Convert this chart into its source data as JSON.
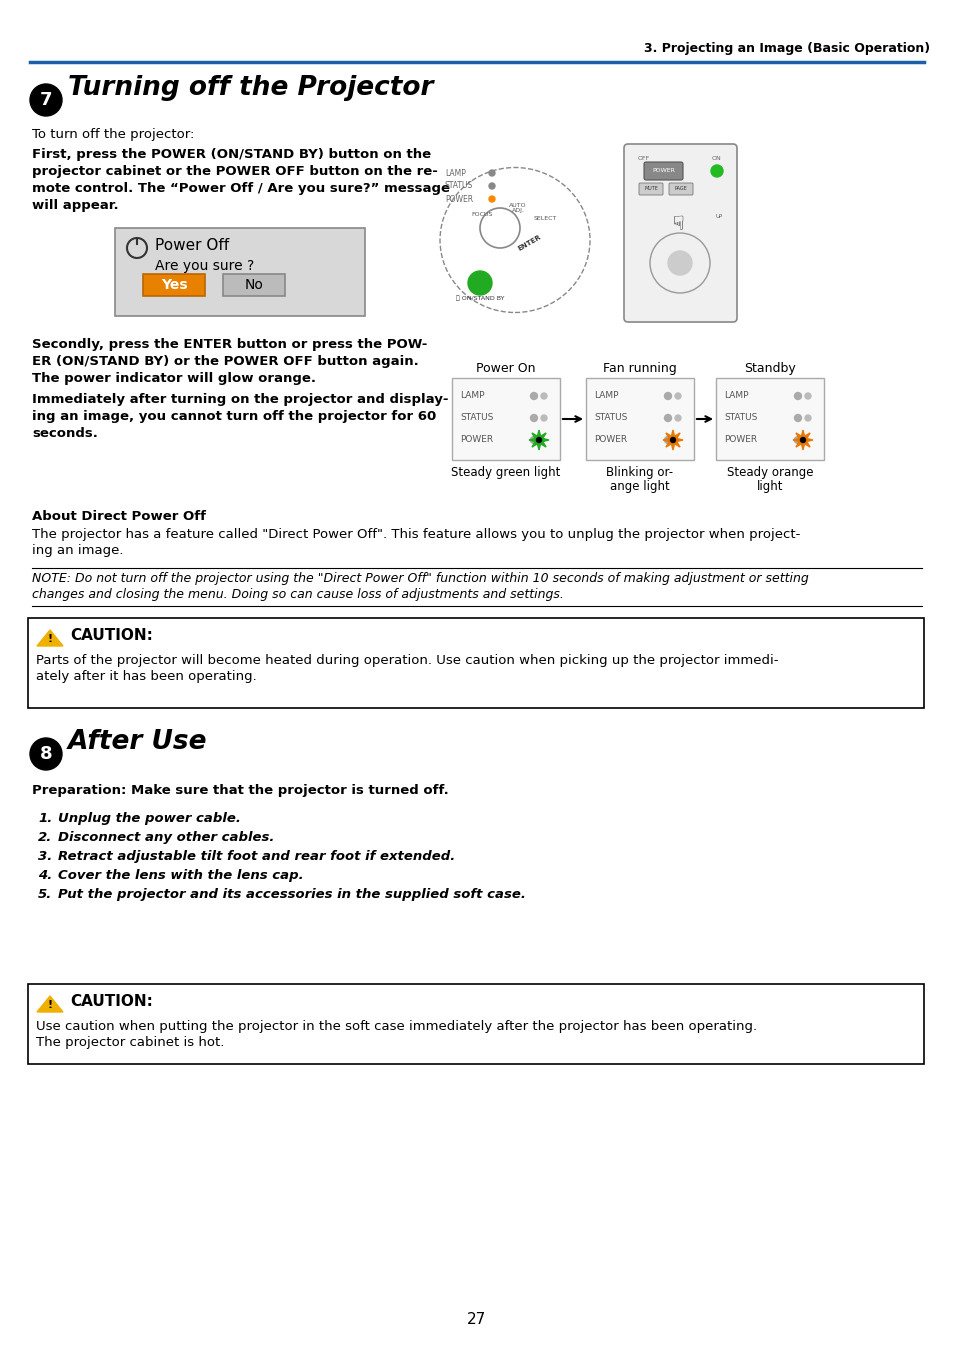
{
  "page_bg": "#ffffff",
  "header_text": "3. Projecting an Image (Basic Operation)",
  "header_line_color": "#2060a0",
  "section7_title": "Turning off the Projector",
  "section7_subtitle": "To turn off the projector:",
  "section7_body1_line1": "First, press the POWER (ON/STAND BY) button on the",
  "section7_body1_line2": "projector cabinet or the POWER OFF button on the re-",
  "section7_body1_line3": "mote control. The “Power Off / Are you sure?” message",
  "section7_body1_line4": "will appear.",
  "section7_body2_line1": "Secondly, press the ENTER button or press the POW-",
  "section7_body2_line2": "ER (ON/STAND BY) or the POWER OFF button again.",
  "section7_body2_line3": "The power indicator will glow orange.",
  "section7_body3_line1": "Immediately after turning on the projector and display-",
  "section7_body3_line2": "ing an image, you cannot turn off the projector for 60",
  "section7_body3_line3": "seconds.",
  "about_title": "About Direct Power Off",
  "about_body_line1": "The projector has a feature called \"Direct Power Off\". This feature allows you to unplug the projector when project-",
  "about_body_line2": "ing an image.",
  "note_text_line1": "NOTE: Do not turn off the projector using the \"Direct Power Off\" function within 10 seconds of making adjustment or setting",
  "note_text_line2": "changes and closing the menu. Doing so can cause loss of adjustments and settings.",
  "caution1_title": "CAUTION:",
  "caution1_body_line1": "Parts of the projector will become heated during operation. Use caution when picking up the projector immedi-",
  "caution1_body_line2": "ately after it has been operating.",
  "section8_title": "After Use",
  "section8_subtitle": "Preparation: Make sure that the projector is turned off.",
  "section8_items": [
    "Unplug the power cable.",
    "Disconnect any other cables.",
    "Retract adjustable tilt foot and rear foot if extended.",
    "Cover the lens with the lens cap.",
    "Put the projector and its accessories in the supplied soft case."
  ],
  "caution2_title": "CAUTION:",
  "caution2_body_line1": "Use caution when putting the projector in the soft case immediately after the projector has been operating.",
  "caution2_body_line2": "The projector cabinet is hot.",
  "page_number": "27",
  "power_on_label": "Power On",
  "fan_label": "Fan running",
  "standby_label": "Standby",
  "steady_green": "Steady green light",
  "blinking_orange_1": "Blinking or-",
  "blinking_orange_2": "ange light",
  "steady_orange_1": "Steady orange",
  "steady_orange_2": "light",
  "led_green_color": "#22aa22",
  "led_orange_color": "#e87800",
  "led_grey_color": "#888888",
  "caution_yellow": "#f0b000",
  "header_blue": "#1a5fa8"
}
